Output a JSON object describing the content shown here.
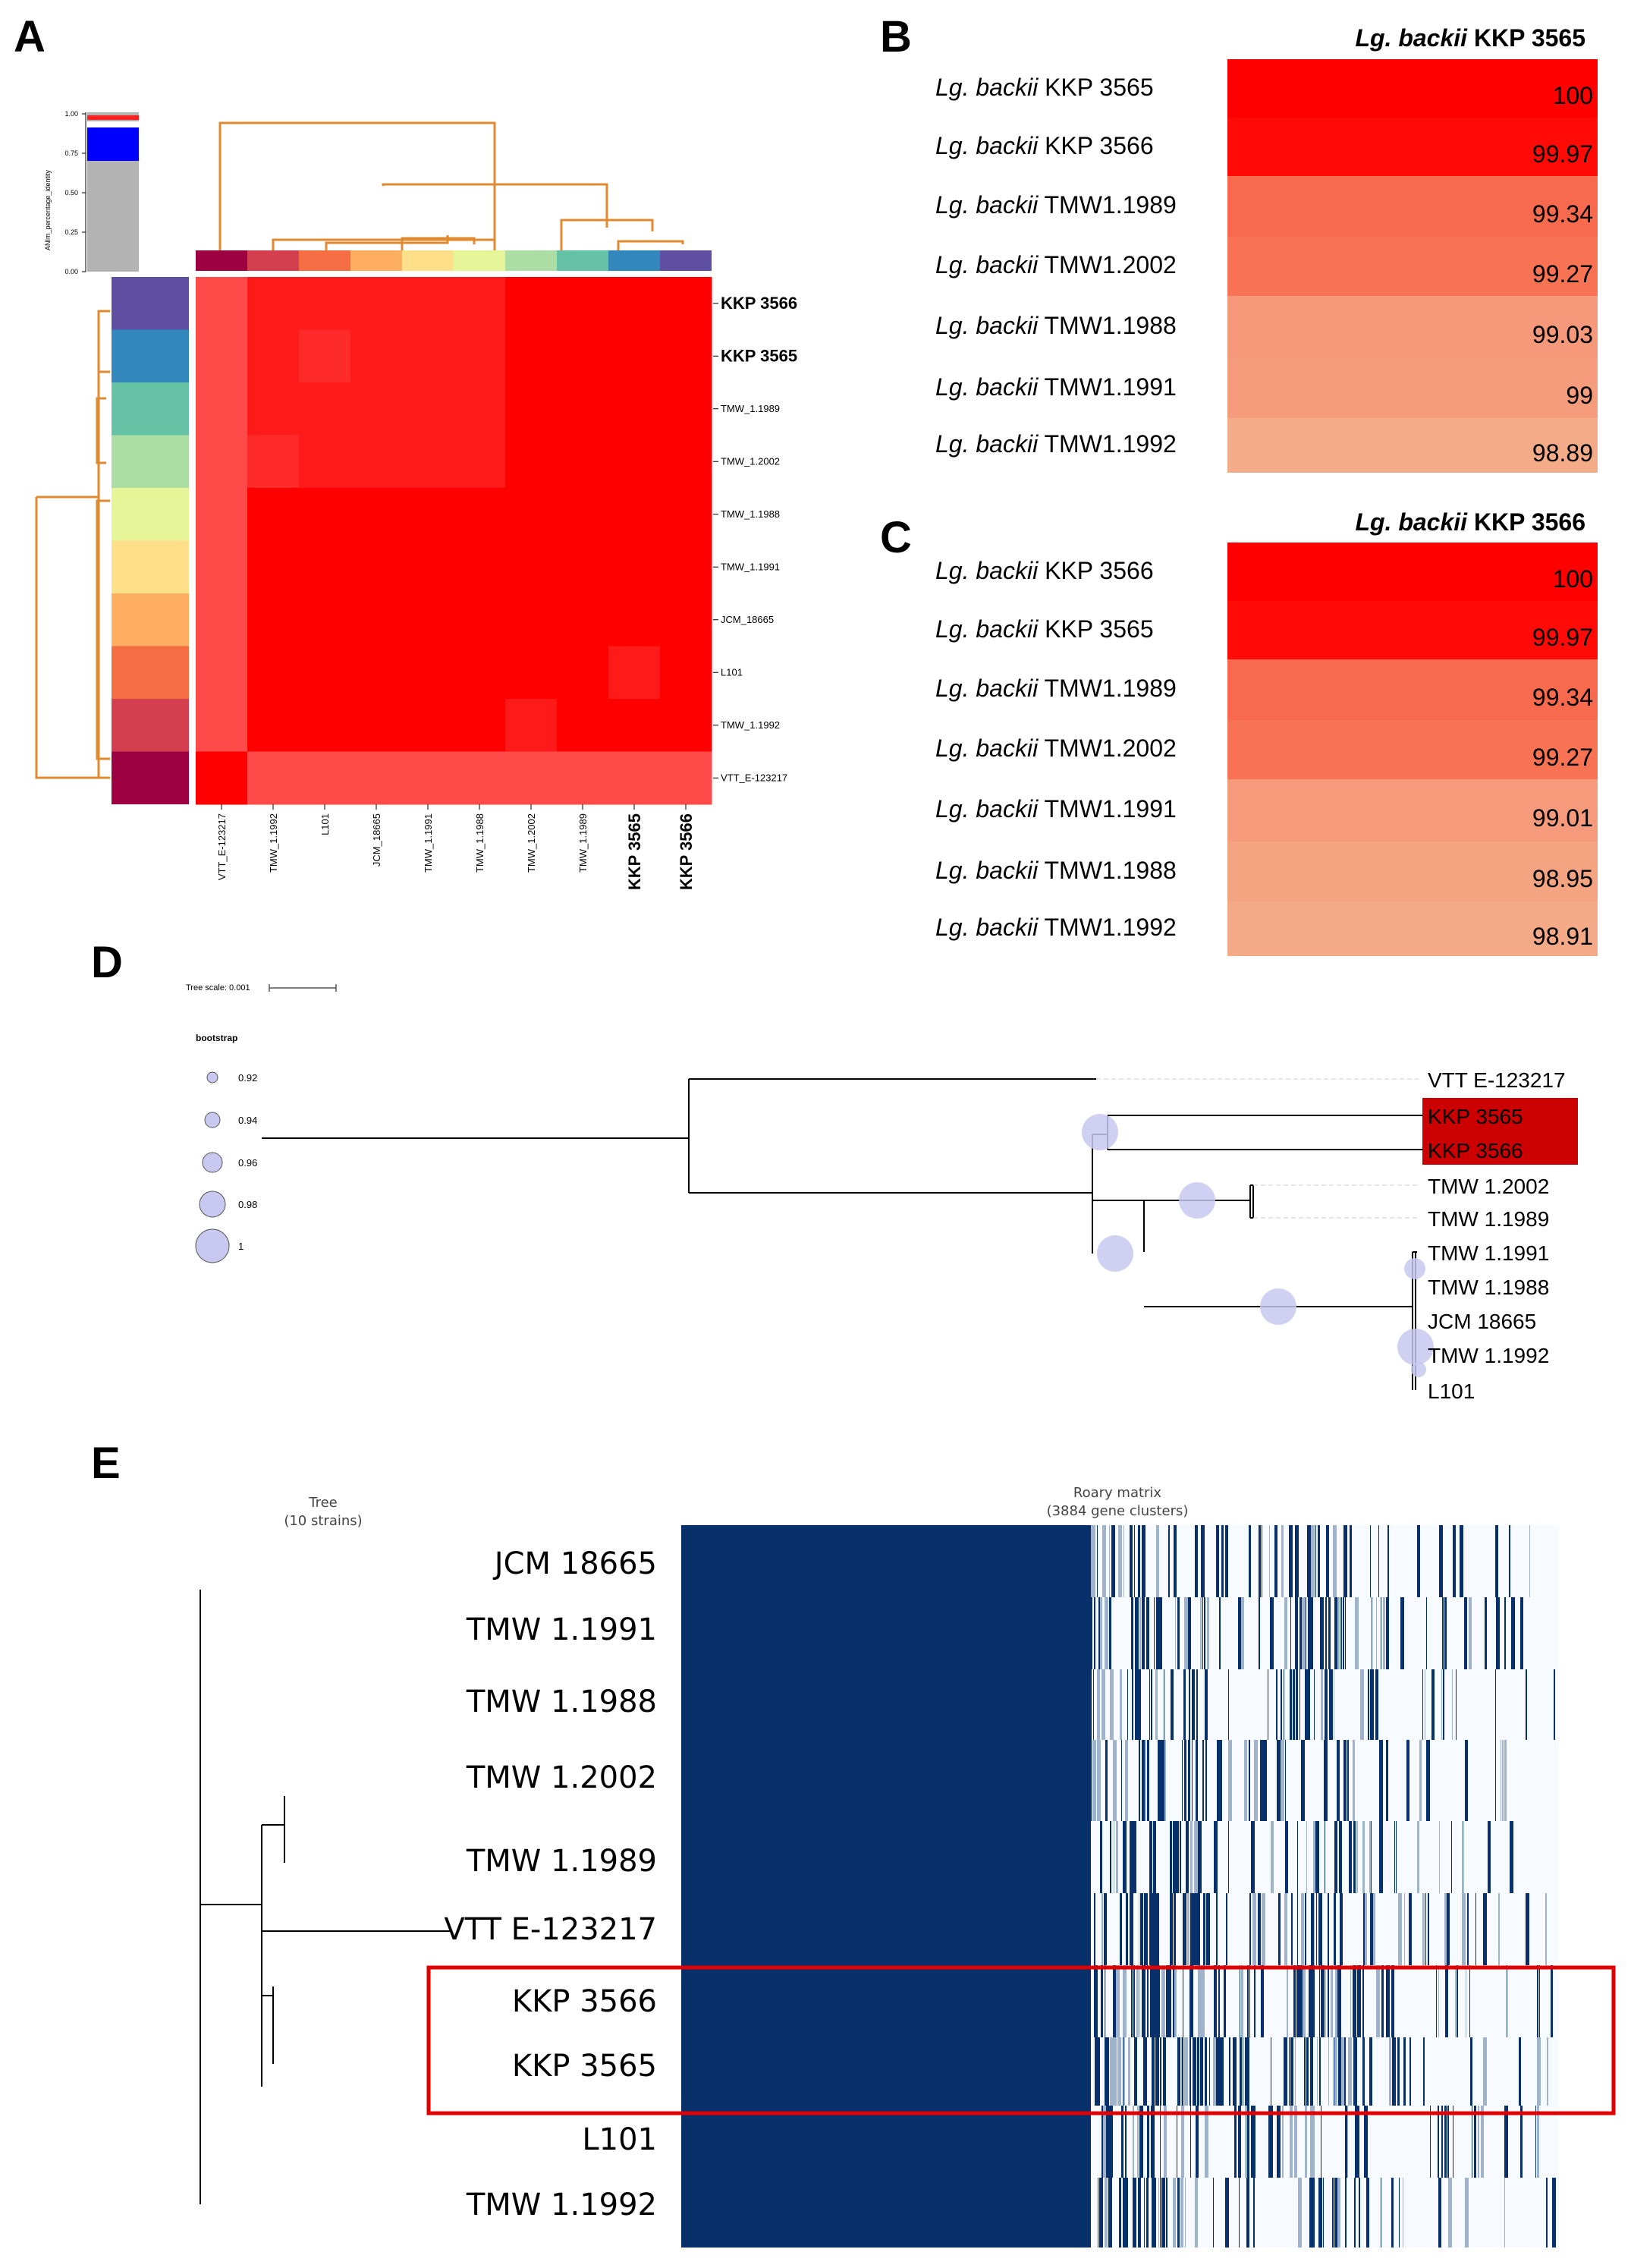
{
  "panels": {
    "a": "A",
    "b": "B",
    "c": "C",
    "d": "D",
    "e": "E"
  },
  "panel_a": {
    "colorbar_label": "ANIm_percentage_identity",
    "colorbar_ticks": [
      "1.00",
      "0.75",
      "0.50",
      "0.25",
      "0.00"
    ],
    "row_labels": [
      "KKP 3566",
      "KKP 3565",
      "TMW_1.1989",
      "TMW_1.2002",
      "TMW_1.1988",
      "TMW_1.1991",
      "JCM_18665",
      "L101",
      "TMW_1.1992",
      "VTT_E-123217"
    ],
    "col_labels": [
      "VTT_E-123217",
      "TMW_1.1992",
      "L101",
      "JCM_18665",
      "TMW_1.1991",
      "TMW_1.1988",
      "TMW_1.2002",
      "TMW_1.1989",
      "KKP 3565",
      "KKP 3566"
    ],
    "group_colors": [
      "#5e4fa2",
      "#3288bd",
      "#66c2a5",
      "#abdda4",
      "#e6f598",
      "#fee08b",
      "#fdae61",
      "#f46d43",
      "#d53e4f",
      "#9e0142"
    ],
    "bold_labels": [
      "KKP 3566",
      "KKP 3565"
    ]
  },
  "panel_b": {
    "header_genus": "Lg. backii",
    "header_strain": "KKP 3565",
    "rows": [
      {
        "genus": "Lg. backii",
        "strain": "KKP 3565",
        "value": "100",
        "color": "#ff0000"
      },
      {
        "genus": "Lg. backii",
        "strain": "KKP 3566",
        "value": "99.97",
        "color": "#ff0a06"
      },
      {
        "genus": "Lg. backii",
        "strain": "TMW1.1989",
        "value": "99.34",
        "color": "#f86a4d"
      },
      {
        "genus": "Lg. backii",
        "strain": "TMW1.2002",
        "value": "99.27",
        "color": "#f87353"
      },
      {
        "genus": "Lg. backii",
        "strain": "TMW1.1988",
        "value": "99.03",
        "color": "#f5997a"
      },
      {
        "genus": "Lg. backii",
        "strain": "TMW1.1991",
        "value": "99",
        "color": "#f59c7c"
      },
      {
        "genus": "Lg. backii",
        "strain": "TMW1.1992",
        "value": "98.89",
        "color": "#f4ac88"
      }
    ]
  },
  "panel_c": {
    "header_genus": "Lg.  backii",
    "header_strain": "KKP 3566",
    "rows": [
      {
        "genus": "Lg. backii",
        "strain": "KKP 3566",
        "value": "100",
        "color": "#ff0000"
      },
      {
        "genus": "Lg. backii",
        "strain": "KKP 3565",
        "value": "99.97",
        "color": "#ff0a06"
      },
      {
        "genus": "Lg. backii",
        "strain": "TMW1.1989",
        "value": "99.34",
        "color": "#f86a4d"
      },
      {
        "genus": "Lg. backii",
        "strain": "TMW1.2002",
        "value": "99.27",
        "color": "#f87353"
      },
      {
        "genus": "Lg. backii",
        "strain": "TMW1.1991",
        "value": "99.01",
        "color": "#f59b7b"
      },
      {
        "genus": "Lg. backii",
        "strain": "TMW1.1988",
        "value": "98.95",
        "color": "#f5a481"
      },
      {
        "genus": "Lg. backii",
        "strain": "TMW1.1992",
        "value": "98.91",
        "color": "#f4aa87"
      }
    ]
  },
  "panel_d": {
    "tree_scale_label": "Tree scale: 0.001",
    "legend_title": "bootstrap",
    "legend_values": [
      "0.92",
      "0.94",
      "0.96",
      "0.98",
      "1"
    ],
    "tips": [
      "VTT E-123217",
      "KKP 3565",
      "KKP 3566",
      "TMW 1.2002",
      "TMW 1.1989",
      "TMW 1.1991",
      "TMW 1.1988",
      "JCM 18665",
      "TMW 1.1992",
      "L101"
    ],
    "highlight_color": "#cc0000",
    "node_color": "#c8c8f0"
  },
  "panel_e": {
    "tree_title_1": "Tree",
    "tree_title_2": "(10 strains)",
    "matrix_title_1": "Roary matrix",
    "matrix_title_2": "(3884 gene clusters)",
    "strains": [
      "JCM 18665",
      "TMW 1.1991",
      "TMW 1.1988",
      "TMW 1.2002",
      "TMW 1.1989",
      "VTT E-123217",
      "KKP 3566",
      "KKP 3565",
      "L101",
      "TMW 1.1992"
    ],
    "matrix_color": "#08306b",
    "highlight_box_color": "#e00000"
  }
}
